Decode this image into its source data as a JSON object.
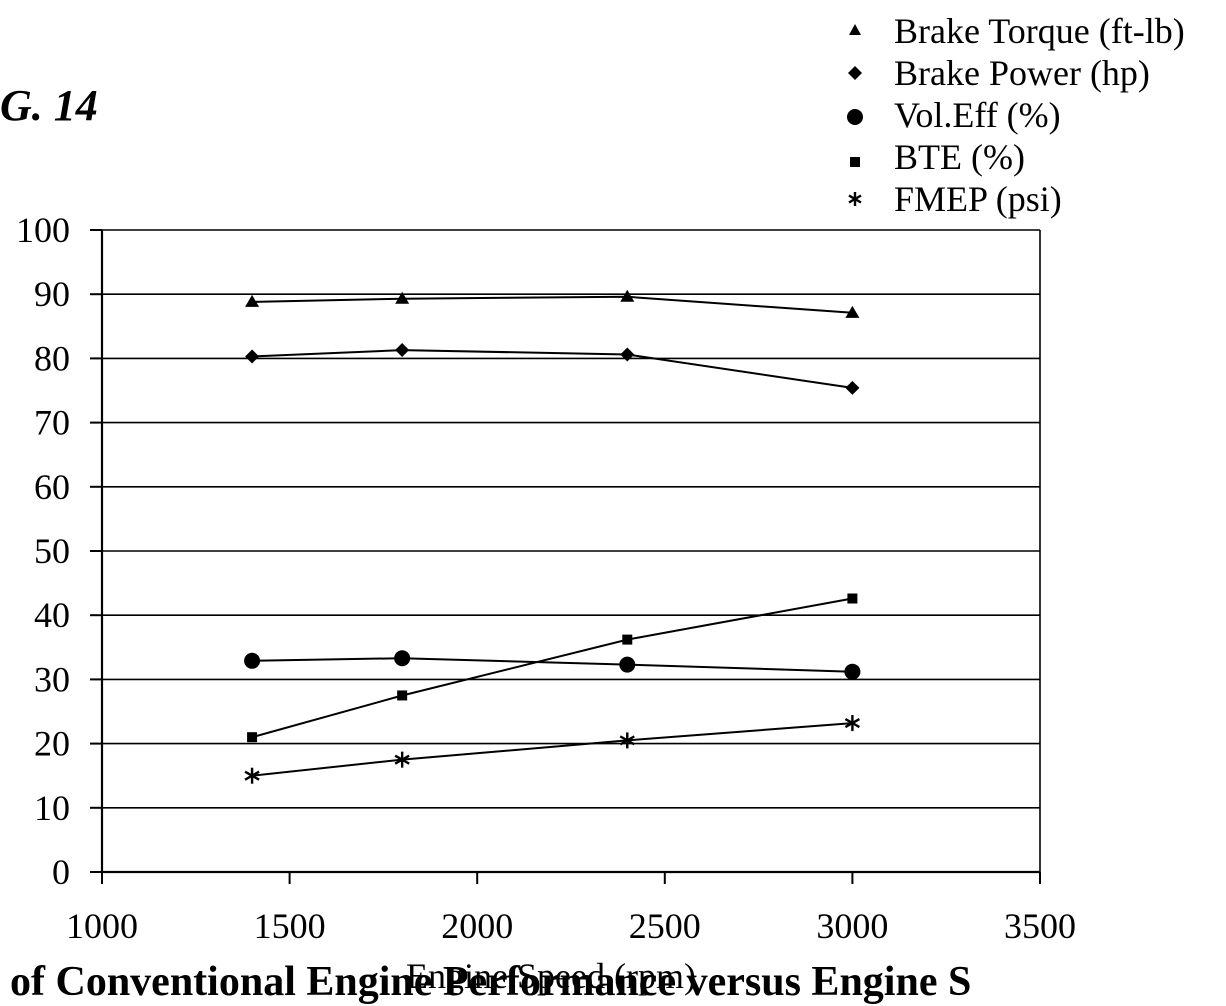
{
  "figure_label": "G. 14",
  "caption": "of Conventional Engine Performance versus Engine S",
  "chart_data": {
    "type": "line",
    "title": "",
    "xlabel": "Engine Speed (rpm)",
    "ylabel": "",
    "xlim": [
      1000,
      3500
    ],
    "ylim": [
      0,
      100
    ],
    "x_ticks": [
      1000,
      1500,
      2000,
      2500,
      3000,
      3500
    ],
    "y_ticks": [
      0,
      10,
      20,
      30,
      40,
      50,
      60,
      70,
      80,
      90,
      100
    ],
    "grid": "horizontal",
    "legend_position": "top-right",
    "series": [
      {
        "name": "Brake Torque (ft-lb)",
        "marker": "triangle",
        "x": [
          1400,
          1800,
          2400,
          3000
        ],
        "values": [
          88.8,
          89.3,
          89.6,
          87.1
        ]
      },
      {
        "name": "Brake Power (hp)",
        "marker": "diamond",
        "x": [
          1400,
          1800,
          2400,
          3000
        ],
        "values": [
          80.3,
          81.3,
          80.6,
          75.4
        ]
      },
      {
        "name": "Vol.Eff (%)",
        "marker": "circle",
        "x": [
          1400,
          1800,
          2400,
          3000
        ],
        "values": [
          32.9,
          33.3,
          32.3,
          31.2
        ]
      },
      {
        "name": "BTE (%)",
        "marker": "square",
        "x": [
          1400,
          1800,
          2400,
          3000
        ],
        "values": [
          21.0,
          27.5,
          36.2,
          42.6
        ]
      },
      {
        "name": "FMEP (psi)",
        "marker": "asterisk",
        "x": [
          1400,
          1800,
          2400,
          3000
        ],
        "values": [
          15.0,
          17.5,
          20.5,
          23.2
        ]
      }
    ]
  }
}
